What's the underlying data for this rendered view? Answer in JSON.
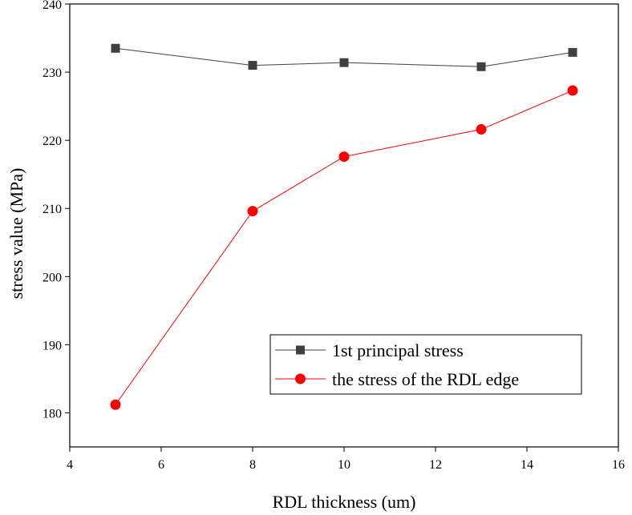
{
  "chart_data": {
    "type": "line",
    "title": "",
    "xlabel": "RDL thickness (um)",
    "ylabel": "stress value (MPa)",
    "xlim": [
      4,
      16
    ],
    "ylim": [
      175,
      240
    ],
    "xticks": [
      4,
      6,
      8,
      10,
      12,
      14,
      16
    ],
    "yticks": [
      180,
      190,
      200,
      210,
      220,
      230,
      240
    ],
    "grid": false,
    "legend_position": "bottom-right",
    "series": [
      {
        "name": "1st principal stress",
        "marker": "square",
        "color": "#404040",
        "x": [
          5,
          8,
          10,
          13,
          15
        ],
        "y": [
          233.5,
          231.0,
          231.4,
          230.8,
          232.9
        ]
      },
      {
        "name": "the stress of the RDL edge",
        "marker": "circle",
        "color": "#ff0000",
        "x": [
          5,
          8,
          10,
          13,
          15
        ],
        "y": [
          181.2,
          209.6,
          217.6,
          221.6,
          227.3
        ]
      }
    ]
  }
}
